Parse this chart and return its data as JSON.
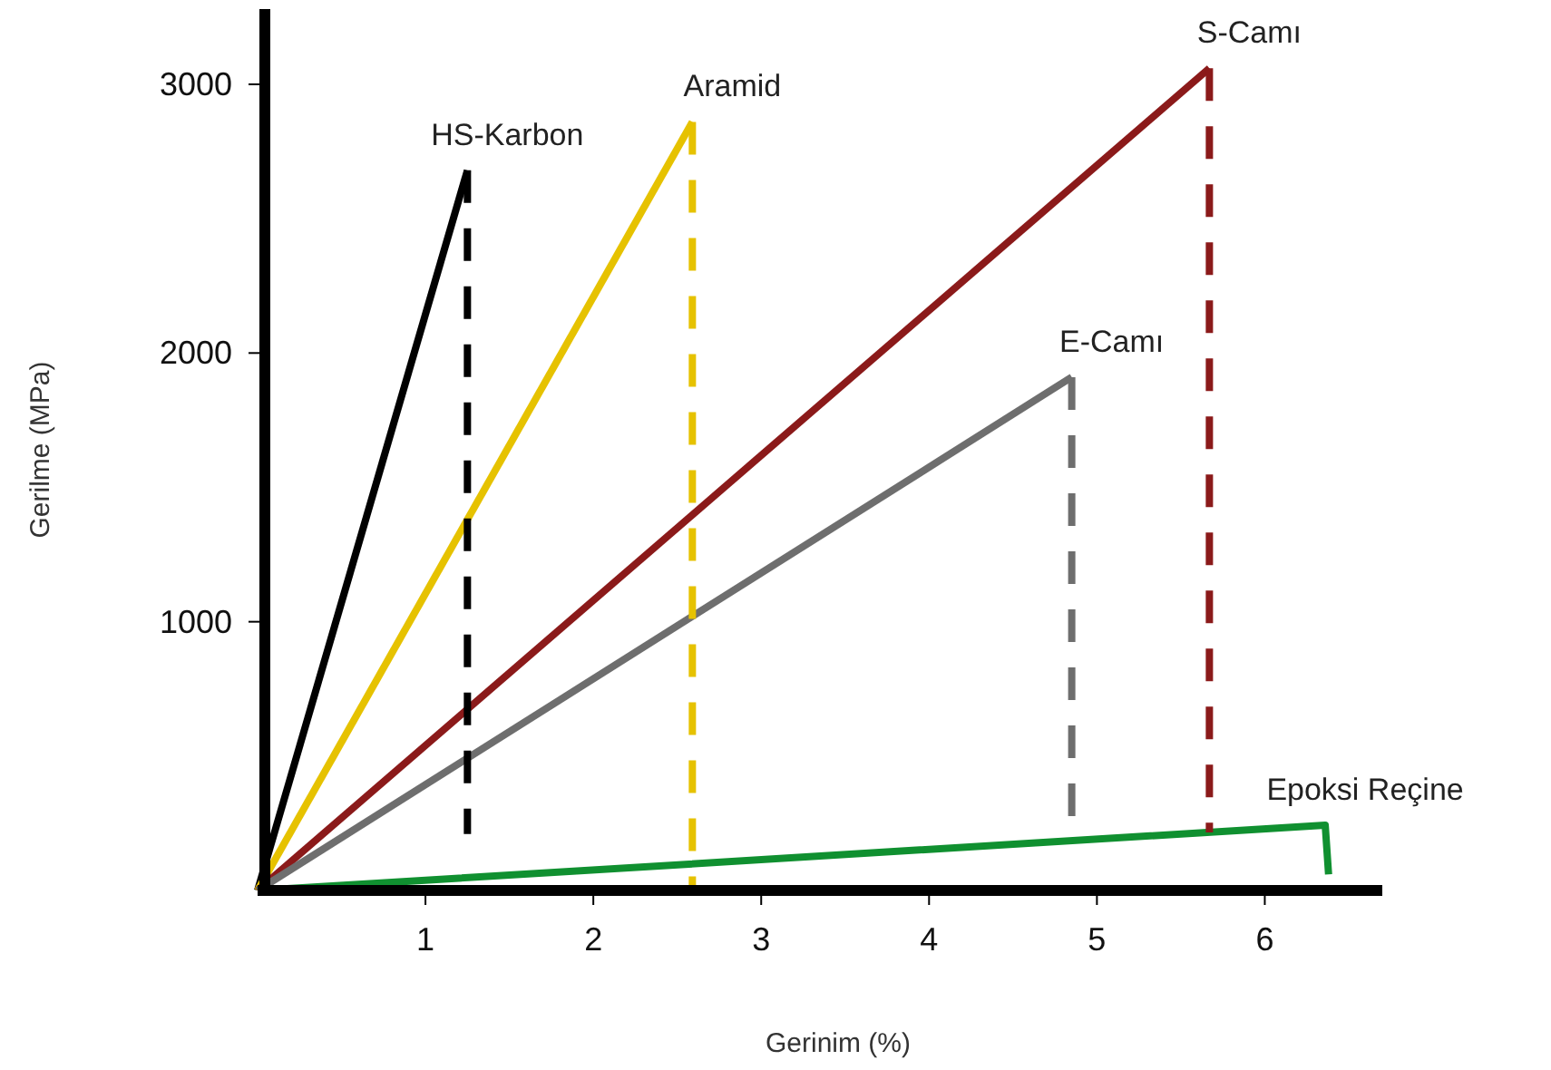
{
  "chart_data": {
    "type": "line",
    "xlabel": "Gerinim (%)",
    "ylabel": "Gerilme (MPa)",
    "xlim": [
      0,
      6.7
    ],
    "ylim": [
      0,
      3280
    ],
    "xticks": [
      1,
      2,
      3,
      4,
      5,
      6
    ],
    "yticks": [
      1000,
      2000,
      3000
    ],
    "marker": "none",
    "series": [
      {
        "name": "HS-Karbon",
        "color": "#000000",
        "x": [
          0,
          1.25
        ],
        "values": [
          0,
          2680
        ],
        "line_style": "solid"
      },
      {
        "name": "Aramid",
        "color": "#e6c200",
        "x": [
          0,
          2.59
        ],
        "values": [
          0,
          2860
        ],
        "line_style": "solid"
      },
      {
        "name": "S-Camı",
        "color": "#8b1a1a",
        "x": [
          0,
          5.67
        ],
        "values": [
          0,
          3060
        ],
        "line_style": "solid"
      },
      {
        "name": "E-Camı",
        "color": "#6e6e6e",
        "x": [
          0,
          4.85
        ],
        "values": [
          0,
          1910
        ],
        "line_style": "solid"
      },
      {
        "name": "Epoksi Reçine",
        "color": "#109030",
        "x": [
          0,
          6.36,
          6.38
        ],
        "values": [
          0,
          243,
          60
        ],
        "line_style": "solid"
      },
      {
        "color": "#000000",
        "x": [
          1.25,
          1.25
        ],
        "values": [
          2680,
          210
        ],
        "line_style": "dashed"
      },
      {
        "color": "#e6c200",
        "x": [
          2.59,
          2.59
        ],
        "values": [
          2860,
          0
        ],
        "line_style": "dashed"
      },
      {
        "color": "#8b1a1a",
        "x": [
          5.67,
          5.67
        ],
        "values": [
          3060,
          216
        ],
        "line_style": "dashed"
      },
      {
        "color": "#6e6e6e",
        "x": [
          4.85,
          4.85
        ],
        "values": [
          1910,
          188
        ],
        "line_style": "dashed"
      }
    ]
  }
}
